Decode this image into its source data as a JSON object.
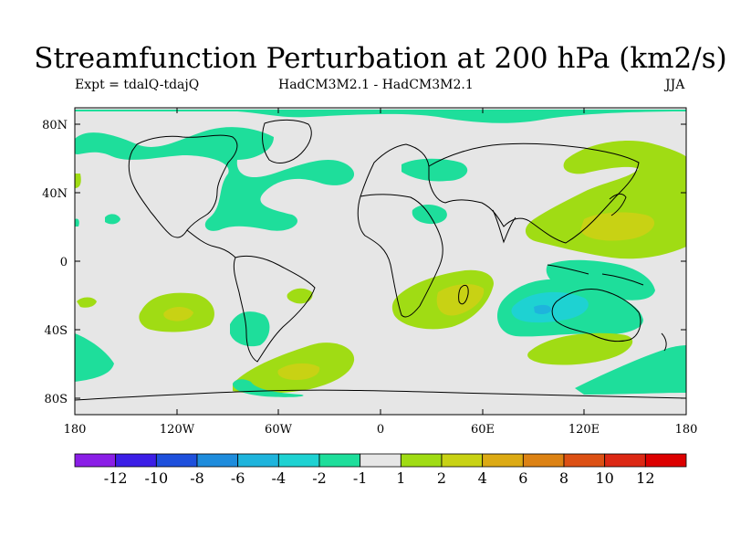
{
  "title": "Streamfunction Perturbation at 200 hPa (km2/s)",
  "subtitle": {
    "left": "Expt = tdalQ-tdajQ",
    "center": "HadCM3M2.1 - HadCM3M2.1",
    "right": "JJA"
  },
  "axes": {
    "lat_labels": [
      "80N",
      "40N",
      "0",
      "40S",
      "80S"
    ],
    "lon_labels": [
      "180",
      "120W",
      "60W",
      "0",
      "60E",
      "120E",
      "180"
    ]
  },
  "colorbar": {
    "labels": [
      "-12",
      "-10",
      "-8",
      "-6",
      "-4",
      "-2",
      "-1",
      "1",
      "2",
      "4",
      "6",
      "8",
      "10",
      "12"
    ],
    "colors": [
      "#8a1ee6",
      "#3c1ee6",
      "#1e50dc",
      "#1e8cdc",
      "#1eb4dc",
      "#1ed2d2",
      "#1ede9b",
      "#e6e6e6",
      "#a0dc14",
      "#c8d214",
      "#dcaa14",
      "#dc8214",
      "#dc5014",
      "#dc2814",
      "#dc0000"
    ]
  },
  "regions": [
    {
      "name": "north-pacific-green",
      "color": "#1ede9b"
    },
    {
      "name": "north-atlantic-green",
      "color": "#1ede9b"
    },
    {
      "name": "south-pacific-lime",
      "color": "#a0dc14"
    },
    {
      "name": "south-atlantic-lime",
      "color": "#a0dc14"
    },
    {
      "name": "indian-ocean-lime",
      "color": "#a0dc14"
    },
    {
      "name": "australia-cyan",
      "color": "#1ed2d2"
    },
    {
      "name": "west-pacific-lime",
      "color": "#a0dc14"
    },
    {
      "name": "southern-ocean-lime",
      "color": "#a0dc14"
    }
  ]
}
